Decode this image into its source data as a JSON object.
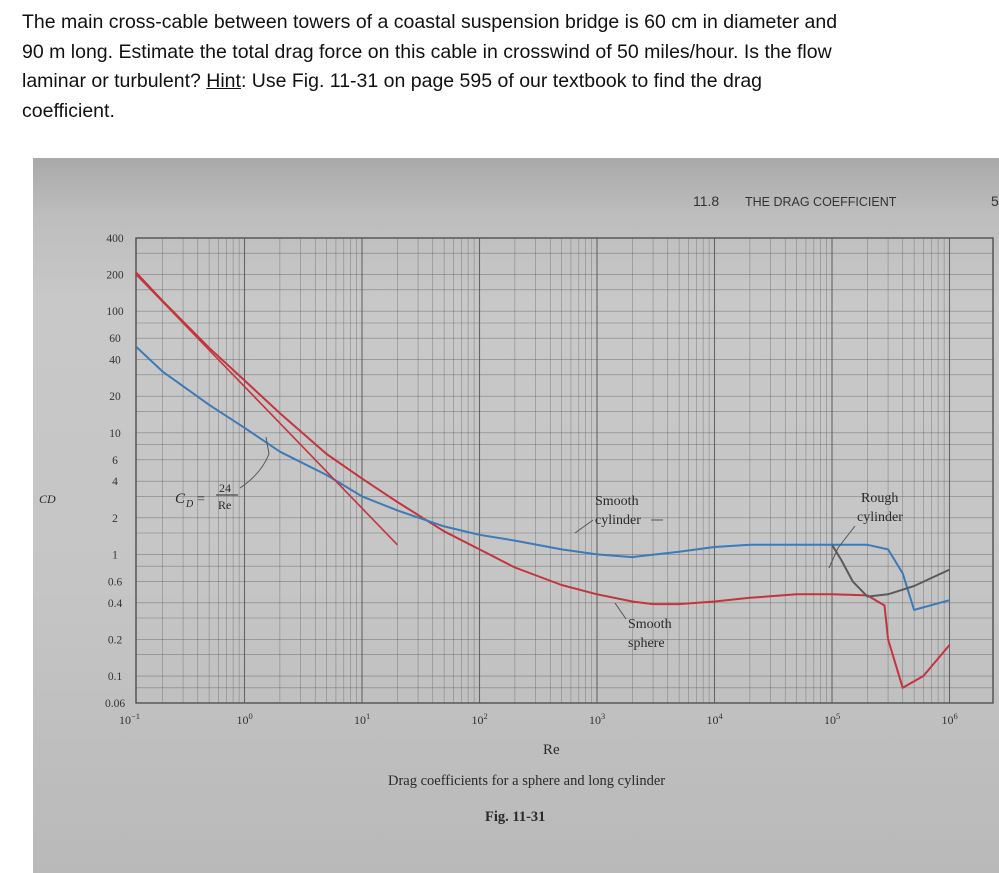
{
  "problem": {
    "line1": "The main cross-cable between towers of a coastal suspension bridge is 60 cm in diameter and",
    "line2": "90 m long.  Estimate the total drag force on this cable in crosswind of 50 miles/hour.  Is the flow",
    "line3_a": "laminar or turbulent? ",
    "line3_hint": "Hint",
    "line3_b": ": Use Fig. 11-31 on page 595 of our textbook to find the drag",
    "line4": "coefficient."
  },
  "figure": {
    "section_number": "11.8",
    "section_title": "THE DRAG COEFFICIENT",
    "page_fragment": "5",
    "formula_lhs": "C",
    "formula_sub": "D",
    "formula_eq": "=",
    "formula_num": "24",
    "formula_den": "Re",
    "caption": "Drag coefficients for a sphere and long cylinder",
    "figure_label": "Fig. 11-31",
    "colors": {
      "sphere": "#c4343e",
      "smooth_cylinder": "#3d7ab8",
      "rough_cylinder": "#5a5a5a",
      "grid": "#555555"
    }
  },
  "chart_data": {
    "type": "line",
    "xlabel": "Re",
    "ylabel": "CD",
    "x_scale": "log",
    "y_scale": "log",
    "xlim": [
      0.1,
      1000000
    ],
    "ylim": [
      0.06,
      400
    ],
    "grid": true,
    "x_ticks": [
      {
        "value": 0.1,
        "base": "10",
        "exp": "−1"
      },
      {
        "value": 1,
        "base": "10",
        "exp": "0"
      },
      {
        "value": 10,
        "base": "10",
        "exp": "1"
      },
      {
        "value": 100,
        "base": "10",
        "exp": "2"
      },
      {
        "value": 1000,
        "base": "10",
        "exp": "3"
      },
      {
        "value": 10000,
        "base": "10",
        "exp": "4"
      },
      {
        "value": 100000,
        "base": "10",
        "exp": "5"
      },
      {
        "value": 1000000,
        "base": "10",
        "exp": "6"
      }
    ],
    "y_ticks": [
      {
        "value": 400,
        "label": "400"
      },
      {
        "value": 200,
        "label": "200"
      },
      {
        "value": 100,
        "label": "100"
      },
      {
        "value": 60,
        "label": "60"
      },
      {
        "value": 40,
        "label": "40"
      },
      {
        "value": 20,
        "label": "20"
      },
      {
        "value": 10,
        "label": "10"
      },
      {
        "value": 6,
        "label": "6"
      },
      {
        "value": 4,
        "label": "4"
      },
      {
        "value": 2,
        "label": "2"
      },
      {
        "value": 1,
        "label": "1"
      },
      {
        "value": 0.6,
        "label": "0.6"
      },
      {
        "value": 0.4,
        "label": "0.4"
      },
      {
        "value": 0.2,
        "label": "0.2"
      },
      {
        "value": 0.1,
        "label": "0.1"
      },
      {
        "value": 0.06,
        "label": "0.06"
      }
    ],
    "series": [
      {
        "name": "Smooth sphere",
        "color": "#c4343e",
        "x": [
          0.1,
          0.2,
          0.5,
          1,
          2,
          5,
          10,
          20,
          50,
          100,
          200,
          500,
          1000,
          2000,
          3000,
          5000,
          10000,
          20000,
          50000,
          100000,
          200000,
          280000,
          300000,
          400000,
          600000,
          1000000
        ],
        "y": [
          250,
          122,
          50,
          27,
          14.5,
          6.7,
          4.2,
          2.7,
          1.55,
          1.1,
          0.78,
          0.56,
          0.47,
          0.41,
          0.39,
          0.39,
          0.41,
          0.44,
          0.47,
          0.47,
          0.46,
          0.38,
          0.2,
          0.08,
          0.1,
          0.18
        ]
      },
      {
        "name": "Smooth cylinder",
        "color": "#3d7ab8",
        "x": [
          0.1,
          0.2,
          0.5,
          1,
          2,
          5,
          10,
          20,
          50,
          100,
          200,
          500,
          1000,
          2000,
          5000,
          10000,
          20000,
          50000,
          100000,
          200000,
          300000,
          400000,
          500000,
          1000000
        ],
        "y": [
          60,
          32,
          17,
          11,
          7,
          4.5,
          3,
          2.3,
          1.7,
          1.45,
          1.3,
          1.1,
          1.0,
          0.95,
          1.05,
          1.15,
          1.2,
          1.2,
          1.2,
          1.2,
          1.1,
          0.7,
          0.35,
          0.42
        ]
      },
      {
        "name": "Rough cylinder",
        "color": "#5a5a5a",
        "x": [
          100000,
          120000,
          150000,
          200000,
          300000,
          500000,
          1000000
        ],
        "y": [
          1.2,
          0.9,
          0.6,
          0.45,
          0.47,
          0.55,
          0.75
        ]
      },
      {
        "name": "CD = 24/Re",
        "color": "#c4343e",
        "x": [
          0.1,
          0.2,
          0.5,
          1,
          2,
          5,
          10,
          20
        ],
        "y": [
          240,
          120,
          48,
          24,
          12,
          4.8,
          2.4,
          1.2
        ]
      }
    ],
    "annotations": [
      {
        "line1": "Smooth",
        "line2": "cylinder"
      },
      {
        "line1": "Smooth",
        "line2": "sphere"
      },
      {
        "line1": "Rough",
        "line2": "cylinder"
      }
    ]
  }
}
